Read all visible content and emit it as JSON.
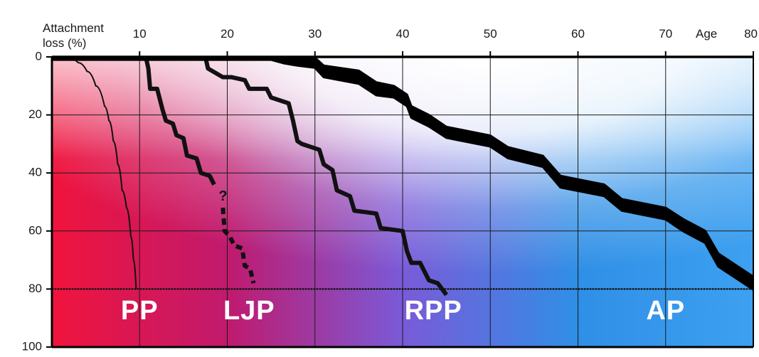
{
  "chart_data": {
    "type": "line",
    "y_title_line1": "Attachment",
    "y_title_line2": "loss (%)",
    "x_title": "Age",
    "x_ticks": [
      10,
      20,
      30,
      40,
      50,
      60,
      70,
      80
    ],
    "y_ticks": [
      0,
      20,
      40,
      60,
      80,
      100
    ],
    "xlim": [
      0,
      80
    ],
    "ylim": [
      0,
      100
    ],
    "y_inverted": true,
    "grid": true,
    "reference_line_y": 80,
    "question_mark": "?",
    "background_gradient": [
      "#f0143c",
      "#c01a6e",
      "#7a5ad8",
      "#2f8fe6",
      "#3da0f0"
    ],
    "series": [
      {
        "name": "PP",
        "style": "thin",
        "color": "#111111",
        "x": [
          1,
          2,
          3,
          4,
          5,
          6,
          6.5,
          7,
          7.5,
          8,
          8.5,
          9,
          9.3,
          9.6
        ],
        "y": [
          0,
          0.5,
          2,
          5,
          10,
          17,
          22,
          29,
          37,
          46,
          52,
          62,
          70,
          80
        ]
      },
      {
        "name": "LJP",
        "style": "step",
        "color": "#111111",
        "x": [
          10.7,
          11,
          11.2,
          12,
          12.6,
          13,
          13.8,
          14.2,
          15,
          15.4,
          16.5,
          17,
          18,
          18.5
        ],
        "y": [
          0,
          4,
          11,
          11,
          18,
          22,
          23,
          27,
          28,
          34,
          35,
          40,
          41,
          44
        ]
      },
      {
        "name": "LJP-uncertain",
        "style": "dashed",
        "color": "#111111",
        "x": [
          19.5,
          19.7,
          20.3,
          20.8,
          21.7,
          22,
          22.6,
          23
        ],
        "y": [
          52,
          60,
          62,
          65,
          66,
          72,
          73,
          78
        ]
      },
      {
        "name": "RPP",
        "style": "step",
        "color": "#111111",
        "x": [
          17.5,
          17.8,
          19.5,
          20.5,
          22,
          22.5,
          24.5,
          25,
          27,
          27.5,
          28,
          28.5,
          30.5,
          31,
          32,
          32.5,
          34,
          34.5,
          37,
          37.5,
          40,
          40.5,
          41,
          42,
          43,
          44,
          45
        ],
        "y": [
          0,
          4,
          7,
          7,
          8,
          11,
          11,
          14,
          16,
          22,
          29,
          30,
          32,
          37,
          39,
          46,
          48,
          53,
          54,
          59,
          60,
          67,
          71,
          71,
          77,
          78,
          82
        ]
      },
      {
        "name": "AP",
        "style": "band",
        "color": "#000000",
        "x": [
          0,
          25,
          26.5,
          28,
          30,
          31,
          35,
          37,
          39,
          40.5,
          41,
          43,
          45,
          50,
          52,
          56,
          58,
          63,
          65,
          70,
          72,
          74.5,
          76,
          80
        ],
        "y": [
          0,
          0,
          1,
          1.5,
          2,
          5,
          7,
          11,
          12,
          15,
          19,
          22,
          26,
          29,
          33,
          36,
          43,
          46,
          51,
          54,
          58,
          62,
          70,
          78
        ],
        "band_width": [
          2,
          2,
          2.5,
          3,
          3.5,
          4,
          4.5,
          4.5,
          4,
          4,
          4,
          4,
          3.8,
          3.8,
          3.8,
          3.8,
          4,
          4,
          4,
          4,
          4.2,
          4.2,
          4.5,
          4.5
        ]
      }
    ],
    "zone_labels": [
      {
        "text": "PP",
        "x": 10,
        "y": 88
      },
      {
        "text": "LJP",
        "x": 22.5,
        "y": 88
      },
      {
        "text": "RPP",
        "x": 43.5,
        "y": 88
      },
      {
        "text": "AP",
        "x": 70,
        "y": 88
      }
    ]
  }
}
